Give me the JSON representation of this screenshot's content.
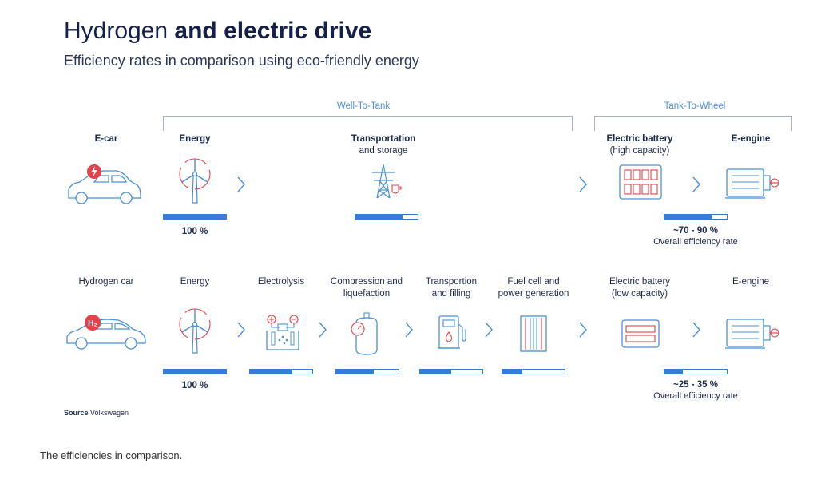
{
  "title": {
    "light": "Hydrogen",
    "bold": "and electric drive"
  },
  "subtitle": "Efficiency rates in comparison using eco-friendly energy",
  "brackets": {
    "well_to_tank": "Well-To-Tank",
    "tank_to_wheel": "Tank-To-Wheel"
  },
  "ecar": {
    "label": "E-car",
    "steps": {
      "energy": "Energy",
      "transport_a": "Transportation",
      "transport_b": "and storage",
      "battery_a": "Electric battery",
      "battery_b": "(high capacity)",
      "engine": "E-engine"
    },
    "energy_pct": "100 %",
    "overall_pct": "~70 - 90 %",
    "overall_label": "Overall efficiency rate",
    "bars": {
      "energy": 1.0,
      "transport": 0.75,
      "overall": 0.75
    }
  },
  "hcar": {
    "label": "Hydrogen car",
    "h2_badge": "H₂",
    "steps": {
      "energy": "Energy",
      "electrolysis": "Electrolysis",
      "compression_a": "Compression and",
      "compression_b": "liquefaction",
      "transportion_a": "Transportion",
      "transportion_b": "and filling",
      "fuelcell_a": "Fuel cell and",
      "fuelcell_b": "power generation",
      "battery_a": "Electric battery",
      "battery_b": "(low capacity)",
      "engine": "E-engine"
    },
    "energy_pct": "100 %",
    "overall_pct": "~25 - 35 %",
    "overall_label": "Overall efficiency rate",
    "bars": {
      "energy": 1.0,
      "electrolysis": 0.68,
      "compression": 0.6,
      "transportion": 0.5,
      "fuelcell": 0.32,
      "overall": 0.3
    }
  },
  "source": {
    "label": "Source",
    "value": "Volkswagen"
  },
  "caption": "The efficiencies in comparison.",
  "colors": {
    "accent": "#3a7bd5",
    "red": "#e0434b",
    "navy": "#14204a"
  }
}
